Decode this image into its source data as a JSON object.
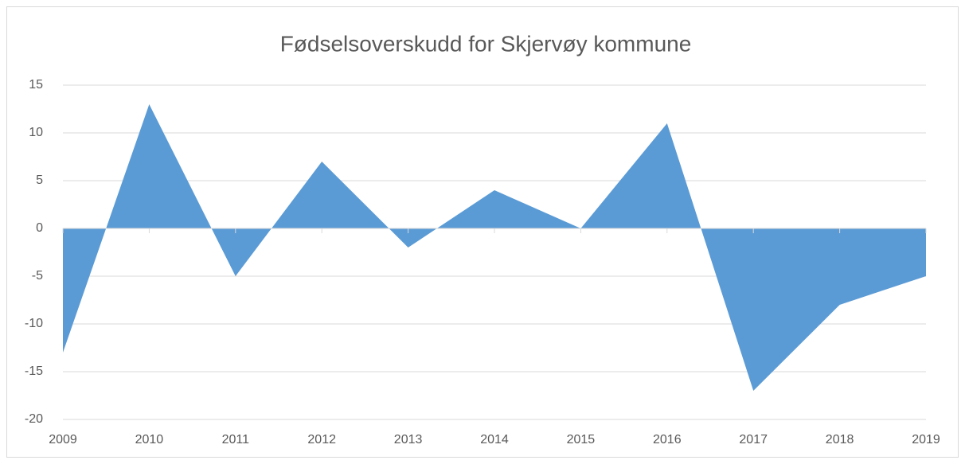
{
  "chart_data": {
    "type": "area",
    "title": "Fødselsoverskudd for Skjervøy kommune",
    "categories": [
      "2009",
      "2010",
      "2011",
      "2012",
      "2013",
      "2014",
      "2015",
      "2016",
      "2017",
      "2018",
      "2019"
    ],
    "values": [
      -13,
      13,
      -5,
      7,
      -2,
      4,
      0,
      11,
      -17,
      -8,
      -5
    ],
    "color": "#5b9bd5",
    "ylim": [
      -20,
      15
    ],
    "yticks": [
      -20,
      -15,
      -10,
      -5,
      0,
      5,
      10,
      15
    ],
    "grid": true
  }
}
